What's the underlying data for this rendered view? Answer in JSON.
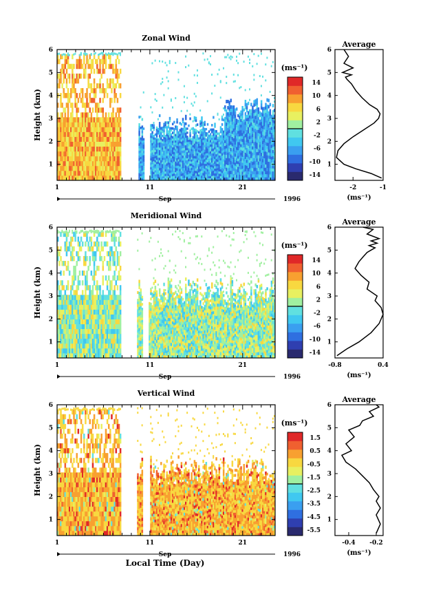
{
  "chart_data": [
    {
      "type": "heatmap",
      "title": "Zonal Wind",
      "ylabel": "Height (km)",
      "xlabel": "Sep",
      "year": "1996",
      "ylim": [
        0.3,
        6
      ],
      "yticks": [
        1,
        2,
        3,
        4,
        5,
        6
      ],
      "xticks": [
        "1",
        "11",
        "21"
      ],
      "xlim_days": [
        1,
        24.5
      ],
      "data_gap_days": [
        [
          7.9,
          9.7
        ],
        [
          10.4,
          11.0
        ]
      ],
      "colorbar_unit": "(ms⁻¹)",
      "colorbar_ticks": [
        "14",
        "10",
        "6",
        "2",
        "-2",
        "-6",
        "-10",
        "-14"
      ],
      "colorbar_colors": [
        "#2a2a6e",
        "#2f3fb0",
        "#2f6fe0",
        "#3a9ff0",
        "#40c8f0",
        "#60e0e0",
        "#a0f0a0",
        "#e8f060",
        "#f8d840",
        "#f8a030",
        "#f06030",
        "#e02828"
      ],
      "profile": {
        "title": "Average",
        "xlabel": "(ms⁻¹)",
        "xlim": [
          -2.6,
          -1.0
        ],
        "xticks": [
          -2,
          -1
        ],
        "x": [
          -1.05,
          -1.4,
          -1.9,
          -2.3,
          -2.55,
          -2.5,
          -2.3,
          -2.0,
          -1.65,
          -1.3,
          -1.15,
          -1.1,
          -1.2,
          -1.45,
          -1.7,
          -1.9,
          -2.05,
          -2.2,
          -2.25,
          -2.05,
          -2.35,
          -2.0,
          -2.3,
          -2.15,
          -2.3
        ],
        "y": [
          0.4,
          0.6,
          0.8,
          1.0,
          1.3,
          1.6,
          1.9,
          2.2,
          2.5,
          2.8,
          3.0,
          3.2,
          3.4,
          3.6,
          3.9,
          4.2,
          4.5,
          4.7,
          4.8,
          4.9,
          5.0,
          5.2,
          5.4,
          5.7,
          6.0
        ]
      }
    },
    {
      "type": "heatmap",
      "title": "Meridional Wind",
      "ylabel": "Height (km)",
      "xlabel": "Sep",
      "year": "1996",
      "ylim": [
        0.3,
        6
      ],
      "yticks": [
        1,
        2,
        3,
        4,
        5,
        6
      ],
      "xticks": [
        "1",
        "11",
        "21"
      ],
      "xlim_days": [
        1,
        24.5
      ],
      "data_gap_days": [
        [
          7.9,
          9.6
        ],
        [
          10.2,
          10.9
        ]
      ],
      "colorbar_unit": "(ms⁻¹)",
      "colorbar_ticks": [
        "14",
        "10",
        "6",
        "2",
        "-2",
        "-6",
        "-10",
        "-14"
      ],
      "colorbar_colors": [
        "#2a2a6e",
        "#2f3fb0",
        "#2f6fe0",
        "#3a9ff0",
        "#40c8f0",
        "#60e0e0",
        "#a0f0a0",
        "#e8f060",
        "#f8d840",
        "#f8a030",
        "#f06030",
        "#e02828"
      ],
      "profile": {
        "title": "Average",
        "xlabel": "(ms⁻¹)",
        "xlim": [
          -0.8,
          0.4
        ],
        "xticks": [
          -0.8,
          0.4
        ],
        "x": [
          -0.75,
          -0.5,
          -0.2,
          0.1,
          0.3,
          0.4,
          0.35,
          0.2,
          0.25,
          0.0,
          0.05,
          -0.15,
          -0.3,
          -0.2,
          -0.1,
          0.0,
          0.1,
          0.2,
          0.05,
          0.25,
          0.1,
          0.3,
          0.0,
          0.15,
          -0.1
        ],
        "y": [
          0.4,
          0.7,
          1.0,
          1.4,
          1.8,
          2.2,
          2.5,
          2.8,
          3.0,
          3.3,
          3.6,
          3.9,
          4.2,
          4.5,
          4.7,
          4.9,
          5.0,
          5.1,
          5.2,
          5.3,
          5.4,
          5.5,
          5.7,
          5.9,
          6.0
        ]
      }
    },
    {
      "type": "heatmap",
      "title": "Vertical Wind",
      "ylabel": "Height (km)",
      "xlabel": "Sep",
      "year": "1996",
      "ylim": [
        0.3,
        6
      ],
      "yticks": [
        1,
        2,
        3,
        4,
        5,
        6
      ],
      "xticks": [
        "1",
        "11",
        "21"
      ],
      "xlim_days": [
        1,
        24.5
      ],
      "data_gap_days": [
        [
          7.9,
          9.6
        ],
        [
          10.3,
          11.0
        ]
      ],
      "colorbar_unit": "(ms⁻¹)",
      "colorbar_ticks": [
        "1.5",
        "0.5",
        "-0.5",
        "-1.5",
        "-2.5",
        "-3.5",
        "-4.5",
        "-5.5"
      ],
      "colorbar_colors": [
        "#2a2a6e",
        "#2f3fb0",
        "#2f6fe0",
        "#3a9ff0",
        "#40c8f0",
        "#60e0e0",
        "#a0f0a0",
        "#e8f060",
        "#f8d840",
        "#f8a030",
        "#f06030",
        "#e02828"
      ],
      "profile": {
        "title": "Average",
        "xlabel": "(ms⁻¹)",
        "xlim": [
          -0.5,
          -0.15
        ],
        "xticks": [
          -0.4,
          -0.2
        ],
        "x": [
          -0.2,
          -0.17,
          -0.2,
          -0.17,
          -0.2,
          -0.18,
          -0.22,
          -0.25,
          -0.3,
          -0.35,
          -0.42,
          -0.45,
          -0.38,
          -0.42,
          -0.36,
          -0.4,
          -0.32,
          -0.3,
          -0.22,
          -0.25,
          -0.18,
          -0.2
        ],
        "y": [
          0.4,
          0.8,
          1.2,
          1.5,
          1.8,
          2.0,
          2.3,
          2.6,
          2.9,
          3.2,
          3.5,
          3.8,
          4.0,
          4.3,
          4.6,
          4.9,
          5.1,
          5.3,
          5.5,
          5.7,
          5.9,
          6.0
        ]
      }
    }
  ],
  "footer": {
    "xlabel": "Local Time (Day)"
  }
}
